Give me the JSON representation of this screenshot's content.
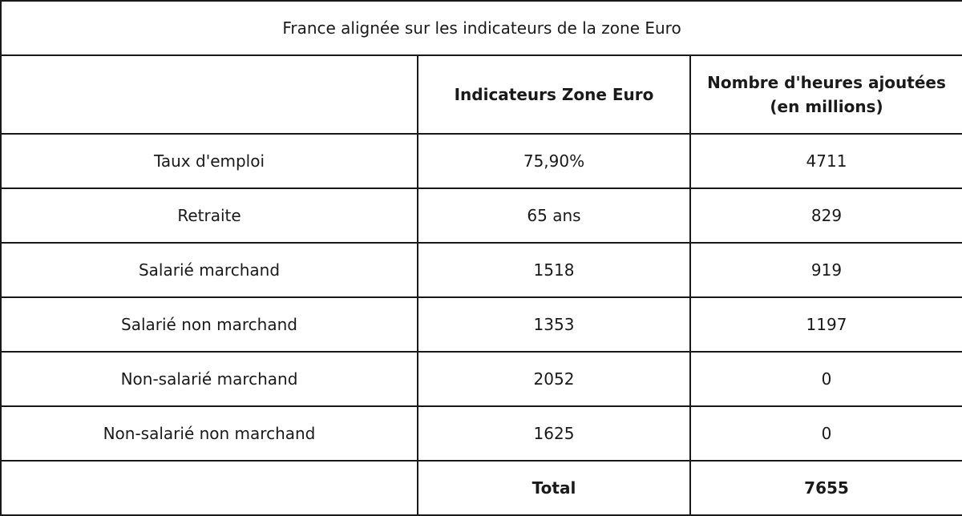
{
  "table": {
    "title": "France alignée sur les indicateurs de la zone Euro",
    "headers": [
      "",
      "Indicateurs Zone Euro",
      "Nombre d'heures ajoutées (en millions)"
    ],
    "rows": [
      [
        "Taux d'emploi",
        "75,90%",
        "4711"
      ],
      [
        "Retraite",
        "65 ans",
        "829"
      ],
      [
        "Salarié marchand",
        "1518",
        "919"
      ],
      [
        "Salarié non marchand",
        "1353",
        "1197"
      ],
      [
        "Non-salarié marchand",
        "2052",
        "0"
      ],
      [
        "Non-salarié non marchand",
        "1625",
        "0"
      ]
    ],
    "total": [
      "",
      "Total",
      "7655"
    ]
  }
}
